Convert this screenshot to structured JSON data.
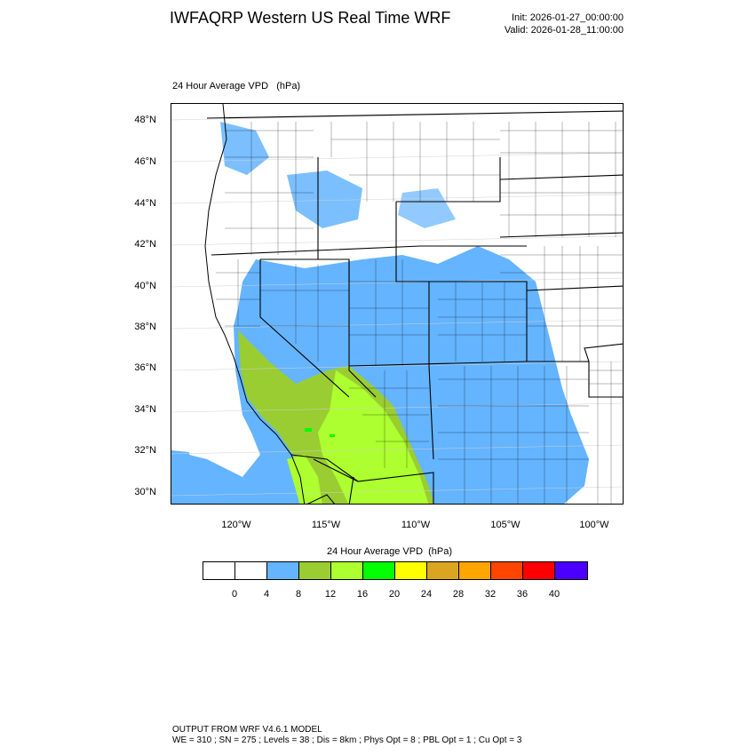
{
  "header": {
    "title": "IWFAQRP Western US Real Time WRF",
    "init": "Init: 2026-01-27_00:00:00",
    "valid": "Valid: 2026-01-28_11:00:00"
  },
  "plot": {
    "title": "24 Hour Average VPD   (hPa)",
    "lat_labels": [
      "48°N",
      "46°N",
      "44°N",
      "42°N",
      "40°N",
      "38°N",
      "36°N",
      "34°N",
      "32°N",
      "30°N"
    ],
    "lon_labels": [
      "120°W",
      "115°W",
      "110°W",
      "105°W",
      "100°W"
    ]
  },
  "colorbar": {
    "title": "24 Hour Average VPD  (hPa)",
    "labels": [
      "0",
      "4",
      "8",
      "12",
      "16",
      "20",
      "24",
      "28",
      "32",
      "36",
      "40"
    ],
    "colors": [
      "#ffffff",
      "#ffffff",
      "#64b4ff",
      "#9acd32",
      "#adff2f",
      "#00ff00",
      "#ffff00",
      "#daa520",
      "#ffa500",
      "#ff4500",
      "#ff0000",
      "#4b00ff"
    ]
  },
  "footer": {
    "line1": "OUTPUT FROM WRF V4.6.1 MODEL",
    "line2": "WE = 310 ; SN = 275 ; Levels = 38 ; Dis = 8km ; Phys Opt = 8 ; PBL Opt = 1 ; Cu Opt = 3"
  }
}
